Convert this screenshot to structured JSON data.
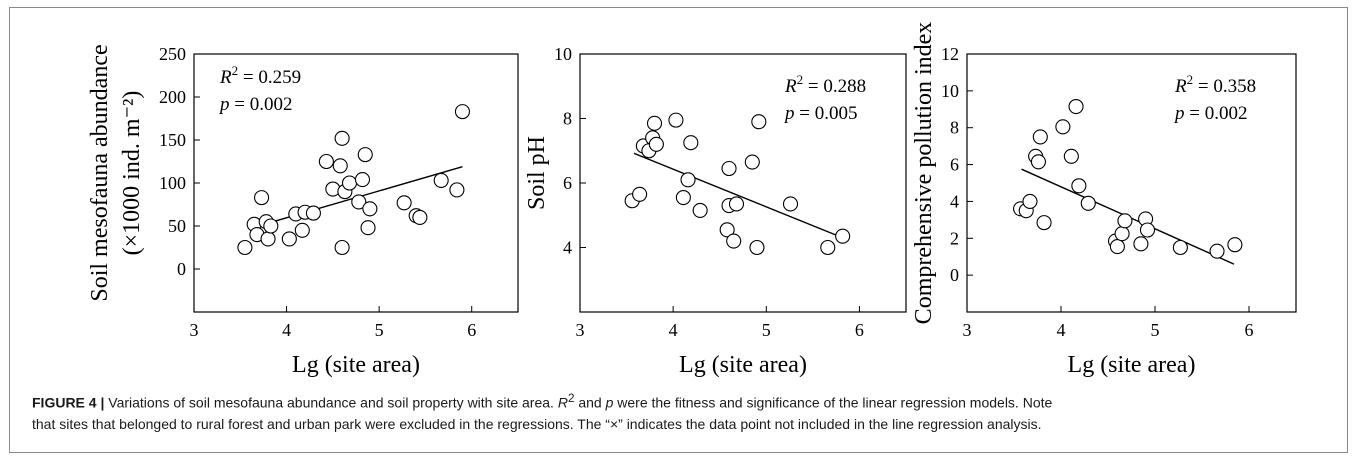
{
  "chart_data": [
    {
      "type": "scatter",
      "xlabel": "Lg (site area)",
      "ylabel_lines": [
        "Soil mesofauna abundance",
        "(×1000 ind. m⁻²)"
      ],
      "xlim": [
        3,
        6.5
      ],
      "ylim": [
        -50,
        250
      ],
      "xticks": [
        3,
        4,
        5,
        6
      ],
      "yticks": [
        0,
        50,
        100,
        150,
        200,
        250
      ],
      "stats": {
        "r2": "R² = 0.259",
        "p": "p = 0.002",
        "position": "top-left"
      },
      "points": [
        [
          3.55,
          25
        ],
        [
          3.65,
          52
        ],
        [
          3.68,
          40
        ],
        [
          3.73,
          83
        ],
        [
          3.78,
          55
        ],
        [
          3.8,
          35
        ],
        [
          3.83,
          50
        ],
        [
          4.03,
          35
        ],
        [
          4.1,
          64
        ],
        [
          4.17,
          45
        ],
        [
          4.2,
          66
        ],
        [
          4.29,
          65
        ],
        [
          4.43,
          125
        ],
        [
          4.5,
          93
        ],
        [
          4.58,
          120
        ],
        [
          4.6,
          152
        ],
        [
          4.6,
          25
        ],
        [
          4.63,
          90
        ],
        [
          4.68,
          100
        ],
        [
          4.78,
          78
        ],
        [
          4.82,
          104
        ],
        [
          4.85,
          133
        ],
        [
          4.88,
          48
        ],
        [
          4.9,
          70
        ],
        [
          5.27,
          77
        ],
        [
          5.4,
          62
        ],
        [
          5.44,
          60
        ],
        [
          5.67,
          103
        ],
        [
          5.84,
          92
        ],
        [
          5.9,
          183
        ]
      ],
      "regression": {
        "x": [
          3.6,
          5.9
        ],
        "y": [
          47,
          119
        ]
      }
    },
    {
      "type": "scatter",
      "xlabel": "Lg (site area)",
      "ylabel_lines": [
        "Soil pH"
      ],
      "xlim": [
        3,
        6.5
      ],
      "ylim": [
        2,
        10
      ],
      "xticks": [
        3,
        4,
        5,
        6
      ],
      "yticks": [
        4,
        6,
        8,
        10
      ],
      "stats": {
        "r2": "R² = 0.288",
        "p": "p = 0.005",
        "position": "top-right"
      },
      "points": [
        [
          3.56,
          5.45
        ],
        [
          3.64,
          5.65
        ],
        [
          3.68,
          7.15
        ],
        [
          3.74,
          7.0
        ],
        [
          3.78,
          7.4
        ],
        [
          3.8,
          7.85
        ],
        [
          3.82,
          7.2
        ],
        [
          4.03,
          7.95
        ],
        [
          4.11,
          5.55
        ],
        [
          4.16,
          6.1
        ],
        [
          4.19,
          7.25
        ],
        [
          4.29,
          5.15
        ],
        [
          4.58,
          4.55
        ],
        [
          4.6,
          5.3
        ],
        [
          4.6,
          6.45
        ],
        [
          4.65,
          4.2
        ],
        [
          4.68,
          5.35
        ],
        [
          4.85,
          6.65
        ],
        [
          4.9,
          4.0
        ],
        [
          4.92,
          7.9
        ],
        [
          5.26,
          5.35
        ],
        [
          5.66,
          4.0
        ],
        [
          5.82,
          4.35
        ]
      ],
      "regression": {
        "x": [
          3.58,
          5.84
        ],
        "y": [
          6.92,
          4.28
        ]
      }
    },
    {
      "type": "scatter",
      "xlabel": "Lg (site area)",
      "ylabel_lines": [
        "Comprehensive pollution index"
      ],
      "xlim": [
        3,
        6.5
      ],
      "ylim": [
        -2,
        12
      ],
      "xticks": [
        3,
        4,
        5,
        6
      ],
      "yticks": [
        0,
        2,
        4,
        6,
        8,
        10,
        12
      ],
      "stats": {
        "r2": "R² = 0.358",
        "p": "p = 0.002",
        "position": "top-right"
      },
      "points": [
        [
          3.57,
          3.6
        ],
        [
          3.63,
          3.5
        ],
        [
          3.67,
          4.0
        ],
        [
          3.73,
          6.45
        ],
        [
          3.76,
          6.15
        ],
        [
          3.78,
          7.5
        ],
        [
          3.82,
          2.85
        ],
        [
          4.02,
          8.05
        ],
        [
          4.11,
          6.45
        ],
        [
          4.16,
          9.15
        ],
        [
          4.19,
          4.85
        ],
        [
          4.29,
          3.9
        ],
        [
          4.58,
          1.85
        ],
        [
          4.6,
          1.55
        ],
        [
          4.65,
          2.25
        ],
        [
          4.68,
          2.95
        ],
        [
          4.85,
          1.7
        ],
        [
          4.9,
          3.05
        ],
        [
          4.92,
          2.45
        ],
        [
          5.27,
          1.5
        ],
        [
          5.66,
          1.3
        ],
        [
          5.85,
          1.65
        ]
      ],
      "regression": {
        "x": [
          3.58,
          5.84
        ],
        "y": [
          5.75,
          0.6
        ]
      }
    }
  ],
  "caption": {
    "label": "FIGURE 4 |",
    "line1a": "Variations of soil mesofauna abundance and soil property with site area.",
    "line1b": " and ",
    "line1c": " were the fitness and significance of the linear regression models. Note",
    "line2": "that sites that belonged to rural forest and urban park were excluded in the regressions. The “×” indicates the data point not included in the line regression analysis.",
    "r_sym": "R",
    "r_sup": "2",
    "p_sym": "p"
  }
}
